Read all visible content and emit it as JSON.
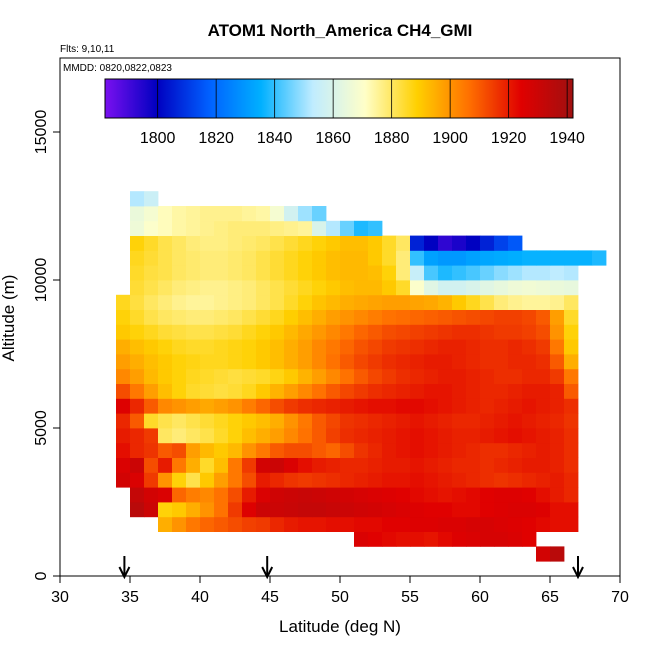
{
  "chart_data": {
    "type": "heatmap",
    "title": "ATOM1 North_America CH4_GMI",
    "flights_label": "Flts: 9,10,11",
    "dates_label": "MMDD: 0820,0822,0823",
    "xlabel": "Latitude (deg N)",
    "ylabel": "Altitude (m)",
    "xlim": [
      30,
      70
    ],
    "ylim": [
      0,
      17500
    ],
    "x_ticks": [
      30,
      35,
      40,
      45,
      50,
      55,
      60,
      65,
      70
    ],
    "y_ticks": [
      0,
      5000,
      10000,
      15000
    ],
    "colorbar": {
      "min": 1782,
      "max": 1942,
      "ticks": [
        1800,
        1820,
        1840,
        1860,
        1880,
        1900,
        1920,
        1940
      ],
      "stops": [
        "#7a10f0",
        "#0000c0",
        "#0060ff",
        "#00b0ff",
        "#c0ecff",
        "#ffffc8",
        "#ffd000",
        "#ff7000",
        "#e00000",
        "#a01010"
      ]
    },
    "arrows_latitude": [
      34.6,
      44.8,
      67.0
    ],
    "grid": false,
    "cell_size": {
      "lat": 1.0,
      "alt": 500
    },
    "rows": [
      {
        "alt": 750,
        "lat_start": 64,
        "values": [
          1928,
          1935
        ]
      },
      {
        "alt": 1250,
        "lat_start": 51,
        "values": [
          1926,
          1924,
          1923,
          1922,
          1922,
          1921,
          1923,
          1925,
          1926,
          1927,
          1927,
          1926,
          1924
        ]
      },
      {
        "alt": 1750,
        "lat_start": 37,
        "values": [
          1895,
          1900,
          1905,
          1908,
          1910,
          1912,
          1914,
          1915,
          1918,
          1920,
          1921,
          1921,
          1922,
          1922,
          1923,
          1923,
          1924,
          1924,
          1925,
          1925,
          1926,
          1926,
          1927,
          1927,
          1926,
          1925,
          1924,
          1923,
          1922,
          1922
        ]
      },
      {
        "alt": 2250,
        "lat_start": 35,
        "values": [
          1935,
          1930,
          1888,
          1890,
          1895,
          1900,
          1906,
          1915,
          1925,
          1930,
          1930,
          1931,
          1932,
          1932,
          1931,
          1930,
          1929,
          1928,
          1927,
          1926,
          1925,
          1924,
          1924,
          1923,
          1923,
          1924,
          1925,
          1926,
          1926,
          1925,
          1922,
          1922
        ]
      },
      {
        "alt": 2750,
        "lat_start": 35,
        "values": [
          1932,
          1928,
          1926,
          1908,
          1904,
          1902,
          1906,
          1912,
          1920,
          1926,
          1929,
          1930,
          1931,
          1930,
          1929,
          1928,
          1927,
          1926,
          1925,
          1924,
          1923,
          1922,
          1921,
          1922,
          1923,
          1924,
          1925,
          1925,
          1924,
          1922,
          1920,
          1918
        ]
      },
      {
        "alt": 3250,
        "lat_start": 34,
        "values": [
          1928,
          1926,
          1915,
          1900,
          1888,
          1882,
          1890,
          1898,
          1905,
          1912,
          1920,
          1918,
          1916,
          1915,
          1916,
          1917,
          1918,
          1919,
          1920,
          1921,
          1921,
          1922,
          1921,
          1920,
          1919,
          1918,
          1917,
          1916,
          1917,
          1918,
          1919,
          1920,
          1918
        ]
      },
      {
        "alt": 3750,
        "lat_start": 34,
        "values": [
          1926,
          1930,
          1912,
          1920,
          1905,
          1895,
          1885,
          1892,
          1905,
          1915,
          1928,
          1930,
          1926,
          1922,
          1920,
          1919,
          1918,
          1918,
          1919,
          1920,
          1920,
          1921,
          1920,
          1919,
          1918,
          1918,
          1917,
          1918,
          1919,
          1920,
          1920,
          1919,
          1917
        ]
      },
      {
        "alt": 4250,
        "lat_start": 34,
        "values": [
          1922,
          1918,
          1916,
          1910,
          1912,
          1898,
          1893,
          1890,
          1893,
          1900,
          1905,
          1910,
          1912,
          1912,
          1910,
          1908,
          1912,
          1916,
          1918,
          1920,
          1921,
          1922,
          1921,
          1920,
          1919,
          1918,
          1917,
          1917,
          1918,
          1919,
          1920,
          1919,
          1917
        ]
      },
      {
        "alt": 4750,
        "lat_start": 34,
        "values": [
          1920,
          1918,
          1915,
          1880,
          1878,
          1880,
          1882,
          1885,
          1888,
          1892,
          1895,
          1898,
          1902,
          1906,
          1910,
          1914,
          1917,
          1918,
          1919,
          1920,
          1921,
          1922,
          1921,
          1920,
          1919,
          1919,
          1920,
          1921,
          1922,
          1921,
          1920,
          1919,
          1917
        ]
      },
      {
        "alt": 5250,
        "lat_start": 34,
        "values": [
          1918,
          1910,
          1885,
          1882,
          1880,
          1882,
          1884,
          1886,
          1888,
          1890,
          1892,
          1895,
          1900,
          1905,
          1910,
          1913,
          1916,
          1917,
          1918,
          1919,
          1920,
          1921,
          1920,
          1919,
          1918,
          1918,
          1919,
          1920,
          1921,
          1920,
          1919,
          1918,
          1916
        ]
      },
      {
        "alt": 5750,
        "lat_start": 34,
        "values": [
          1925,
          1918,
          1910,
          1902,
          1900,
          1898,
          1896,
          1898,
          1900,
          1904,
          1908,
          1912,
          1915,
          1917,
          1918,
          1919,
          1920,
          1921,
          1922,
          1922,
          1923,
          1923,
          1922,
          1921,
          1920,
          1919,
          1918,
          1919,
          1920,
          1921,
          1920,
          1919,
          1917
        ]
      },
      {
        "alt": 6250,
        "lat_start": 34,
        "values": [
          1912,
          1905,
          1898,
          1892,
          1888,
          1885,
          1884,
          1883,
          1884,
          1886,
          1890,
          1894,
          1898,
          1902,
          1906,
          1910,
          1913,
          1915,
          1917,
          1918,
          1919,
          1920,
          1921,
          1921,
          1920,
          1919,
          1918,
          1918,
          1919,
          1920,
          1920,
          1919,
          1910
        ]
      },
      {
        "alt": 6750,
        "lat_start": 34,
        "values": [
          1902,
          1898,
          1893,
          1890,
          1888,
          1886,
          1885,
          1884,
          1883,
          1884,
          1885,
          1887,
          1890,
          1894,
          1898,
          1902,
          1906,
          1910,
          1913,
          1915,
          1917,
          1918,
          1919,
          1920,
          1920,
          1919,
          1918,
          1917,
          1917,
          1918,
          1918,
          1915,
          1905
        ]
      },
      {
        "alt": 7250,
        "lat_start": 34,
        "values": [
          1898,
          1895,
          1892,
          1890,
          1888,
          1887,
          1886,
          1886,
          1887,
          1888,
          1890,
          1892,
          1895,
          1898,
          1902,
          1906,
          1910,
          1913,
          1915,
          1917,
          1918,
          1919,
          1920,
          1920,
          1919,
          1918,
          1917,
          1917,
          1918,
          1918,
          1917,
          1910,
          1895
        ]
      },
      {
        "alt": 7750,
        "lat_start": 34,
        "values": [
          1895,
          1892,
          1890,
          1888,
          1886,
          1885,
          1885,
          1886,
          1887,
          1888,
          1890,
          1892,
          1895,
          1898,
          1902,
          1905,
          1908,
          1911,
          1913,
          1915,
          1916,
          1917,
          1918,
          1919,
          1919,
          1918,
          1917,
          1917,
          1918,
          1917,
          1915,
          1905,
          1890
        ]
      },
      {
        "alt": 8250,
        "lat_start": 34,
        "values": [
          1890,
          1888,
          1886,
          1884,
          1883,
          1882,
          1882,
          1883,
          1884,
          1886,
          1888,
          1890,
          1893,
          1896,
          1899,
          1902,
          1905,
          1908,
          1910,
          1912,
          1913,
          1914,
          1915,
          1916,
          1917,
          1917,
          1916,
          1915,
          1915,
          1914,
          1912,
          1900,
          1888
        ]
      },
      {
        "alt": 8750,
        "lat_start": 34,
        "values": [
          1888,
          1885,
          1882,
          1880,
          1879,
          1878,
          1878,
          1879,
          1880,
          1882,
          1884,
          1886,
          1889,
          1892,
          1895,
          1898,
          1900,
          1902,
          1904,
          1906,
          1907,
          1908,
          1909,
          1910,
          1911,
          1912,
          1913,
          1914,
          1914,
          1913,
          1910,
          1898,
          1885
        ]
      },
      {
        "alt": 9250,
        "lat_start": 34,
        "values": [
          1886,
          1883,
          1880,
          1878,
          1876,
          1875,
          1875,
          1876,
          1877,
          1878,
          1880,
          1882,
          1885,
          1888,
          1891,
          1893,
          1895,
          1896,
          1897,
          1898,
          1898,
          1897,
          1896,
          1894,
          1890,
          1886,
          1882,
          1878,
          1876,
          1875,
          1875,
          1876,
          1880
        ]
      },
      {
        "alt": 9750,
        "lat_start": 35,
        "values": [
          1884,
          1882,
          1880,
          1878,
          1877,
          1876,
          1876,
          1877,
          1878,
          1880,
          1882,
          1884,
          1886,
          1888,
          1890,
          1892,
          1893,
          1893,
          1890,
          1885,
          1870,
          1862,
          1858,
          1858,
          1860,
          1862,
          1864,
          1866,
          1867,
          1866,
          1865,
          1864
        ]
      },
      {
        "alt": 10250,
        "lat_start": 35,
        "values": [
          1885,
          1883,
          1882,
          1880,
          1879,
          1878,
          1878,
          1879,
          1880,
          1882,
          1884,
          1886,
          1888,
          1890,
          1892,
          1893,
          1893,
          1892,
          1888,
          1878,
          1855,
          1842,
          1838,
          1840,
          1842,
          1845,
          1848,
          1850,
          1852,
          1852,
          1853,
          1852
        ]
      },
      {
        "alt": 10750,
        "lat_start": 35,
        "values": [
          1886,
          1884,
          1882,
          1880,
          1879,
          1878,
          1878,
          1879,
          1880,
          1882,
          1884,
          1886,
          1888,
          1890,
          1892,
          1893,
          1893,
          1890,
          1885,
          1878,
          1840,
          1832,
          1830,
          1830,
          1832,
          1833,
          1834,
          1835,
          1836,
          1836,
          1836,
          1836,
          1836,
          1838
        ]
      },
      {
        "alt": 11250,
        "lat_start": 35,
        "values": [
          1888,
          1885,
          1882,
          1880,
          1878,
          1877,
          1877,
          1878,
          1879,
          1880,
          1882,
          1884,
          1886,
          1888,
          1890,
          1892,
          1892,
          1890,
          1885,
          1880,
          1806,
          1800,
          1793,
          1796,
          1800,
          1806,
          1812,
          1816
        ]
      },
      {
        "alt": 11750,
        "lat_start": 35,
        "values": [
          1866,
          1870,
          1872,
          1874,
          1875,
          1876,
          1877,
          1878,
          1878,
          1878,
          1877,
          1876,
          1875,
          1860,
          1852,
          1845,
          1838,
          1840
        ]
      },
      {
        "alt": 12250,
        "lat_start": 35,
        "values": [
          1865,
          1868,
          1872,
          1874,
          1875,
          1876,
          1876,
          1876,
          1875,
          1874,
          1868,
          1858,
          1850,
          1845
        ]
      },
      {
        "alt": 12750,
        "lat_start": 35,
        "values": [
          1852,
          1856
        ]
      }
    ]
  }
}
